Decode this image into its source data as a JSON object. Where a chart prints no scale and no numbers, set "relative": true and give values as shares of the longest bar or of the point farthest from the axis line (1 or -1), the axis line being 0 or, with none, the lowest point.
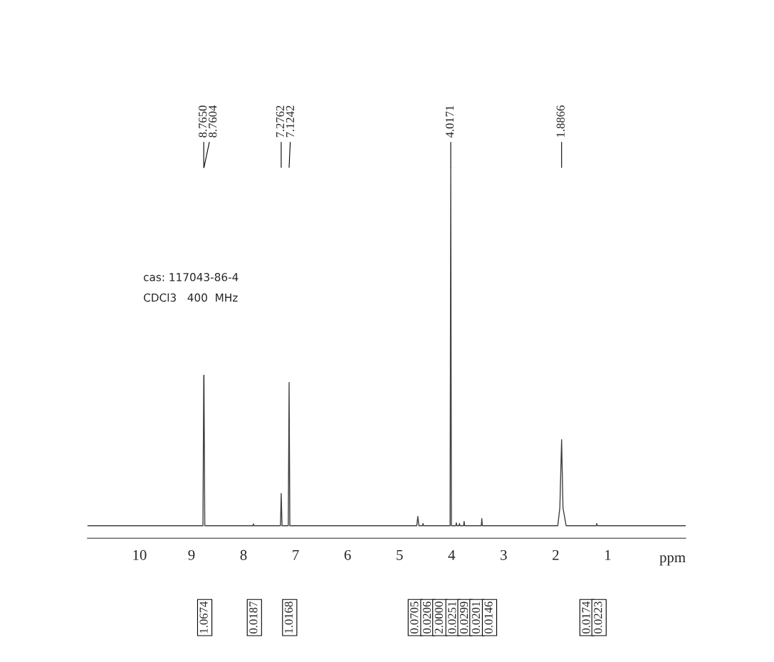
{
  "chart_data": {
    "type": "line",
    "relative": true,
    "xlabel": "ppm",
    "xlim": [
      11.0,
      -0.5
    ],
    "xticks": [
      10,
      9,
      8,
      7,
      6,
      5,
      4,
      3,
      2,
      1
    ],
    "grid": false,
    "legend": false,
    "marker": "none",
    "line_style": "solid",
    "series": [
      {
        "color": "#404040",
        "x": [
          11.0,
          8.78,
          8.765,
          8.7627,
          8.7604,
          8.745,
          7.82,
          7.81,
          7.8,
          7.29,
          7.2762,
          7.26,
          7.14,
          7.1242,
          7.11,
          4.67,
          4.65,
          4.63,
          4.56,
          4.55,
          4.54,
          4.03,
          4.0171,
          4.005,
          3.92,
          3.91,
          3.9,
          3.86,
          3.85,
          3.84,
          3.77,
          3.76,
          3.75,
          3.43,
          3.42,
          3.41,
          1.96,
          1.92,
          1.8866,
          1.86,
          1.8,
          1.22,
          1.21,
          1.2,
          -0.5
        ],
        "values": [
          0,
          0,
          0.42,
          0.38,
          0.42,
          0,
          0,
          0.005,
          0,
          0,
          0.09,
          0,
          0,
          0.4,
          0,
          0,
          0.026,
          0,
          0,
          0.006,
          0,
          0,
          1.0,
          0,
          0,
          0.008,
          0,
          0,
          0.006,
          0,
          0,
          0.012,
          0,
          0,
          0.02,
          0,
          0,
          0.05,
          0.24,
          0.05,
          0,
          0,
          0.006,
          0,
          0
        ]
      }
    ],
    "annotations": [
      {
        "text": "8.7650",
        "x": 8.765
      },
      {
        "text": "8.7604",
        "x": 8.7604
      },
      {
        "text": "7.2762",
        "x": 7.2762
      },
      {
        "text": "7.1242",
        "x": 7.1242
      },
      {
        "text": "4.0171",
        "x": 4.0171
      },
      {
        "text": "1.8866",
        "x": 1.8866
      },
      "1.0674",
      "0.0187",
      "1.0168",
      "0.0705",
      "0.0206",
      "2.0000",
      "0.0251",
      "0.0299",
      "0.0201",
      "0.0146",
      "0.0174",
      "0.0223",
      "cas: 117043-86-4",
      "CDCl3   400  MHz"
    ]
  }
}
